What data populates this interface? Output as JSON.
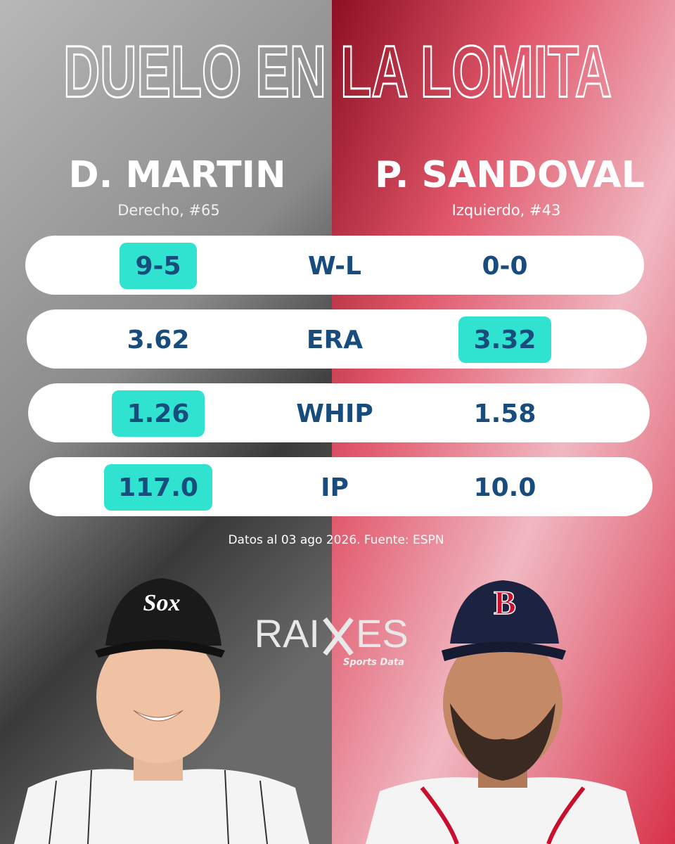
{
  "title": "DUELO EN LA LOMITA",
  "players": [
    {
      "name": "D. MARTIN",
      "detail": "Derecho, #65",
      "cap_logo": "Sox"
    },
    {
      "name": "P. SANDOVAL",
      "detail": "Izquierdo, #43",
      "cap_logo": "B"
    }
  ],
  "stats": [
    {
      "label": "W-L",
      "left": "9-5",
      "right": "0-0",
      "highlight": "left"
    },
    {
      "label": "ERA",
      "left": "3.62",
      "right": "3.32",
      "highlight": "right"
    },
    {
      "label": "WHIP",
      "left": "1.26",
      "right": "1.58",
      "highlight": "left"
    },
    {
      "label": "IP",
      "left": "117.0",
      "right": "10.0",
      "highlight": "left"
    }
  ],
  "note": "Datos al 03 ago 2026. Fuente: ESPN",
  "brand": {
    "left": "RAI",
    "right": "ES",
    "tagline": "Sports Data"
  }
}
